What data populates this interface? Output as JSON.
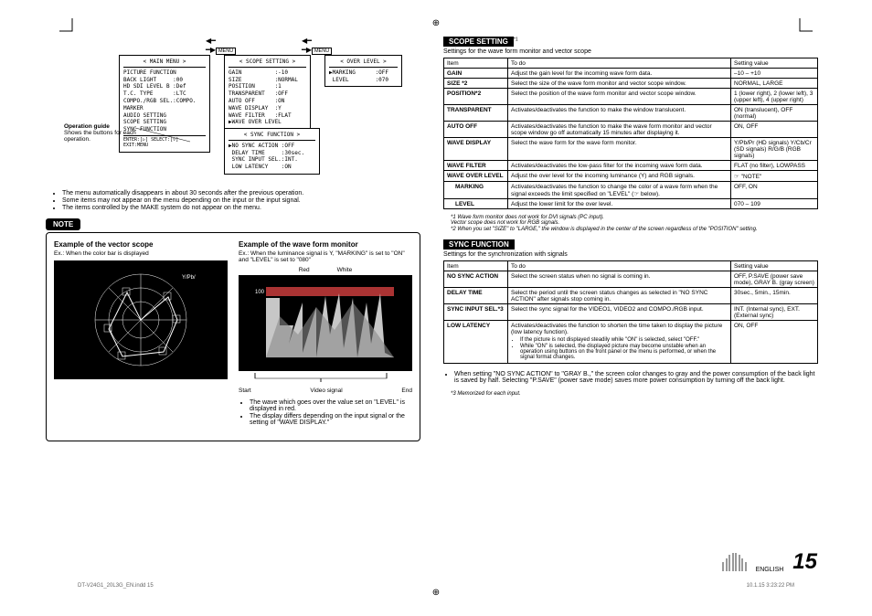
{
  "menus": {
    "main_title": "< MAIN MENU >",
    "main_items": "PICTURE FUNCTION\nBACK LIGHT     :00\nHD SDI LEVEL B :Def\nT.C. TYPE      :LTC\nCOMPO./RGB SEL.:COMPO.\nMARKER\nAUDIO SETTING\nSCOPE SETTING\nSYNC FUNCTION",
    "main_footer": "ENTER:[▷]  SELECT:[▽]  EXIT:MENU",
    "scope_title": "< SCOPE SETTING >",
    "scope_items": "GAIN          :-10\nSIZE          :NORMAL\nPOSITION      :1\nTRANSPARENT   :OFF\nAUTO OFF      :ON\nWAVE DISPLAY  :Y\nWAVE FILTER   :FLAT\n▶WAVE OVER LEVEL",
    "over_title": "< OVER LEVEL >",
    "over_items": "▶MARKING      :OFF\n LEVEL        :070",
    "sync_title": "< SYNC FUNCTION >",
    "sync_items": "▶NO SYNC ACTION :OFF\n DELAY TIME     :30sec.\n SYNC INPUT SEL.:INT.\n LOW LATENCY    :ON",
    "menu_btn": "MENU"
  },
  "op_guide": {
    "title": "Operation guide",
    "desc": "Shows the buttons for each operation."
  },
  "left_bullets": [
    "The menu automatically disappears in about 30 seconds after the previous operation.",
    "Some items may not appear on the menu depending on the input or the input signal.",
    "The items controlled by the MAKE system do not appear on the menu."
  ],
  "note": {
    "badge": "NOTE",
    "vector_title": "Example of the vector scope",
    "vector_sub": "Ex.: When the color bar is displayed",
    "wave_title": "Example of the wave form monitor",
    "wave_sub": "Ex.: When the luminance signal is Y, \"MARKING\" is set to \"ON\" and \"LEVEL\" is set to \"080\"",
    "red": "Red",
    "white": "White",
    "start": "Start",
    "end": "End",
    "video_signal": "Video signal",
    "wave_bullets": [
      "The wave which goes over the value set on \"LEVEL\" is displayed in red.",
      "The display differs depending on the input signal or the setting of \"WAVE DISPLAY.\""
    ]
  },
  "scope_section": {
    "header": "SCOPE SETTING",
    "sup": "*1",
    "desc": "Settings for the wave form monitor and vector scope",
    "th_item": "Item",
    "th_todo": "To do",
    "th_val": "Setting value",
    "rows": [
      {
        "item": "GAIN",
        "todo": "Adjust the gain level for the incoming wave form data.",
        "val": "–10 – +10"
      },
      {
        "item": "SIZE *2",
        "todo": "Select the size of the wave form monitor and vector scope window.",
        "val": "NORMAL, LARGE"
      },
      {
        "item": "POSITION*2",
        "todo": "Select the position of the wave form monitor and vector scope window.",
        "val": "1 (lower right), 2 (lower left), 3 (upper left), 4 (upper right)"
      },
      {
        "item": "TRANSPARENT",
        "todo": "Activates/deactivates the function to make the window translucent.",
        "val": "ON (translucent), OFF (normal)"
      },
      {
        "item": "AUTO OFF",
        "todo": "Activates/deactivates the function to make the wave form monitor and vector scope window go off automatically 15 minutes after displaying it.",
        "val": "ON, OFF"
      },
      {
        "item": "WAVE DISPLAY",
        "todo": "Select the wave form for the wave form monitor.",
        "val": "Y/Pb/Pr (HD signals) Y/Cb/Cr (SD signals) R/G/B (RGB signals)"
      },
      {
        "item": "WAVE FILTER",
        "todo": "Activates/deactivates the low-pass filter for the incoming wave form data.",
        "val": "FLAT (no filter), LOWPASS"
      },
      {
        "item": "WAVE OVER LEVEL",
        "todo": "Adjust the over level for the incoming luminance (Y) and RGB signals.",
        "val": "☞ \"NOTE\""
      },
      {
        "item": "MARKING",
        "todo": "Activates/deactivates the function to change the color of a wave form when the signal exceeds the limit specified on \"LEVEL\" (☞ below).",
        "val": "OFF, ON",
        "indent": true
      },
      {
        "item": "LEVEL",
        "todo": "Adjust the lower limit for the over level.",
        "val": "070 – 109",
        "indent": true
      }
    ],
    "footnotes": [
      "*1 Wave form monitor does not work for DVI signals (PC input).\n    Vector scope does not work for RGB signals.",
      "*2 When you set \"SIZE\" to \"LARGE,\" the window is displayed in the center of the screen regardless of the \"POSITION\" setting."
    ]
  },
  "sync_section": {
    "header": "SYNC FUNCTION",
    "desc": "Settings for the synchronization with signals",
    "th_item": "Item",
    "th_todo": "To do",
    "th_val": "Setting value",
    "rows": [
      {
        "item": "NO SYNC ACTION",
        "todo": "Select the screen status when no signal is coming in.",
        "val": "OFF, P.SAVE (power save mode), GRAY B. (gray screen)"
      },
      {
        "item": "DELAY TIME",
        "todo": "Select the period until the screen status changes as selected in \"NO SYNC ACTION\" after signals stop coming in.",
        "val": "30sec., 5min., 15min."
      },
      {
        "item": "SYNC INPUT SEL.*3",
        "todo": "Select the sync signal for the VIDEO1, VIDEO2 and COMPO./RGB input.",
        "val": "INT. (Internal sync), EXT. (External sync)"
      },
      {
        "item": "LOW LATENCY",
        "todo": "Activates/deactivates the function to shorten the time taken to display the picture (low latency function).",
        "val": "ON, OFF",
        "sub": [
          "If the picture is not displayed steadily while \"ON\" is selected, select \"OFF.\"",
          "While \"ON\" is selected, the displayed picture may become unstable when an operation using buttons on the front panel or the menu is performed, or when the signal format changes."
        ]
      }
    ],
    "bottom_bullet": "When setting \"NO SYNC ACTION\" to \"GRAY B.,\" the screen color changes to gray and the power consumption of the back light is saved by half. Selecting \"P.SAVE\" (power save mode) saves more power consumption by turning off the back light.",
    "fn3": "*3 Memorized for each input."
  },
  "footer": {
    "english": "ENGLISH",
    "page": "15",
    "indd": "DT-V24G1_20L3G_EN.indd   15",
    "time": "10.1.15   3:23:22 PM"
  }
}
